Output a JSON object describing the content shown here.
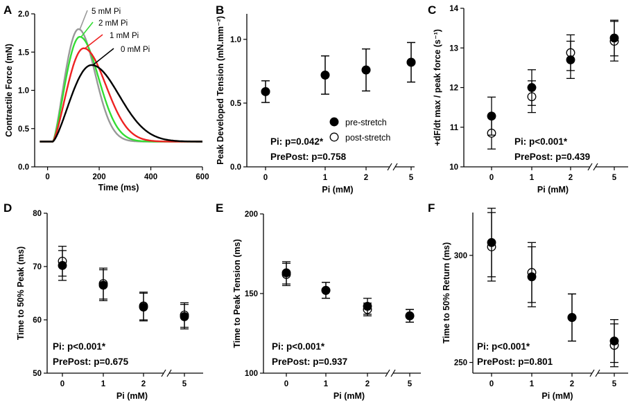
{
  "figure": {
    "width": 913,
    "height": 585
  },
  "chart_data": [
    {
      "id": "A",
      "panel_letter": "A",
      "type": "line",
      "xlabel": "Time (ms)",
      "ylabel": "Contractile Force (mN)",
      "xlim": [
        -50,
        600
      ],
      "ylim": [
        0.0,
        2.0
      ],
      "x_ticks": [
        0,
        200,
        400,
        600
      ],
      "x_tick_labels": [
        "0",
        "200",
        "400",
        "600"
      ],
      "y_ticks": [
        0.0,
        0.5,
        1.0,
        1.5,
        2.0
      ],
      "y_tick_labels": [
        "0.0",
        "0.5",
        "1.0",
        "1.5",
        "2.0"
      ],
      "series": [
        {
          "name": "5 mM Pi",
          "label": "5 mM Pi",
          "color": "#999999",
          "baseline": 0.33,
          "peak": 1.8,
          "t_peak": 120,
          "rise": 100,
          "decay": 60
        },
        {
          "name": "2 mM Pi",
          "label": "2 mM Pi",
          "color": "#33dd33",
          "baseline": 0.33,
          "peak": 1.7,
          "t_peak": 125,
          "rise": 105,
          "decay": 68
        },
        {
          "name": "1 mM Pi",
          "label": "1 mM Pi",
          "color": "#ee2222",
          "baseline": 0.33,
          "peak": 1.55,
          "t_peak": 140,
          "rise": 120,
          "decay": 80
        },
        {
          "name": "0 mM Pi",
          "label": "0 mM Pi",
          "color": "#000000",
          "baseline": 0.33,
          "peak": 1.33,
          "t_peak": 170,
          "rise": 150,
          "decay": 100
        }
      ]
    },
    {
      "id": "B",
      "panel_letter": "B",
      "type": "scatter",
      "xlabel": "Pi (mM)",
      "ylabel": "Peak Developed Tension (mN.mm⁻²)",
      "categories": [
        "0",
        "1",
        "2",
        "5"
      ],
      "ylim": [
        0.0,
        1.2
      ],
      "y_ticks": [
        0.0,
        0.5,
        1.0
      ],
      "y_tick_labels": [
        "0.0",
        "0.5",
        "1.0"
      ],
      "axis_break": true,
      "series": [
        {
          "name": "pre-stretch",
          "filled": true,
          "values": [
            0.59,
            0.72,
            0.76,
            0.82
          ],
          "err": [
            0.085,
            0.15,
            0.165,
            0.155
          ]
        },
        {
          "name": "post-stretch",
          "filled": false,
          "values": [
            0.59,
            0.72,
            0.76,
            0.82
          ],
          "err": [
            0.085,
            0.15,
            0.165,
            0.155
          ]
        }
      ],
      "stats": [
        "Pi: p=0.042*",
        "PrePost: p=0.758"
      ],
      "legend": {
        "pre": "pre-stretch",
        "post": "post-stretch"
      }
    },
    {
      "id": "C",
      "panel_letter": "C",
      "type": "scatter",
      "xlabel": "Pi (mM)",
      "ylabel": "+dF/dt max / peak force (s⁻¹)",
      "categories": [
        "0",
        "1",
        "2",
        "5"
      ],
      "ylim": [
        10,
        14
      ],
      "y_ticks": [
        10,
        11,
        12,
        13,
        14
      ],
      "y_tick_labels": [
        "10",
        "11",
        "12",
        "13",
        "14"
      ],
      "axis_break": true,
      "series": [
        {
          "name": "pre-stretch",
          "filled": true,
          "values": [
            11.28,
            12.0,
            12.7,
            13.25
          ],
          "err": [
            0.48,
            0.45,
            0.47,
            0.45
          ]
        },
        {
          "name": "post-stretch",
          "filled": false,
          "values": [
            10.85,
            11.77,
            12.88,
            13.17
          ],
          "err": [
            0.4,
            0.4,
            0.45,
            0.5
          ]
        }
      ],
      "stats": [
        "Pi: p<0.001*",
        "PrePost: p=0.439"
      ]
    },
    {
      "id": "D",
      "panel_letter": "D",
      "type": "scatter",
      "xlabel": "Pi (mM)",
      "ylabel": "Time to 50% Peak (ms)",
      "categories": [
        "0",
        "1",
        "2",
        "5"
      ],
      "ylim": [
        50,
        80
      ],
      "y_ticks": [
        50,
        60,
        70,
        80
      ],
      "y_tick_labels": [
        "50",
        "60",
        "70",
        "80"
      ],
      "axis_break": true,
      "series": [
        {
          "name": "pre-stretch",
          "filled": true,
          "values": [
            70.2,
            66.5,
            62.4,
            60.6
          ],
          "err": [
            2.8,
            2.9,
            2.6,
            2.3
          ]
        },
        {
          "name": "post-stretch",
          "filled": false,
          "values": [
            71.0,
            66.8,
            62.6,
            60.9
          ],
          "err": [
            2.8,
            2.9,
            2.6,
            2.3
          ]
        }
      ],
      "stats": [
        "Pi: p<0.001*",
        "PrePost: p=0.675"
      ]
    },
    {
      "id": "E",
      "panel_letter": "E",
      "type": "scatter",
      "xlabel": "Pi (mM)",
      "ylabel": "Time to Peak Tension (ms)",
      "categories": [
        "0",
        "1",
        "2",
        "5"
      ],
      "ylim": [
        100,
        200
      ],
      "y_ticks": [
        100,
        150,
        200
      ],
      "y_tick_labels": [
        "100",
        "150",
        "200"
      ],
      "axis_break": true,
      "series": [
        {
          "name": "pre-stretch",
          "filled": true,
          "values": [
            163,
            152,
            142,
            136
          ],
          "err": [
            7,
            5,
            5,
            4
          ]
        },
        {
          "name": "post-stretch",
          "filled": false,
          "values": [
            162,
            152,
            140,
            136
          ],
          "err": [
            7,
            5,
            4,
            4
          ]
        }
      ],
      "stats": [
        "Pi: p<0.001*",
        "PrePost: p=0.937"
      ]
    },
    {
      "id": "F",
      "panel_letter": "F",
      "type": "scatter",
      "xlabel": "Pi (mM)",
      "ylabel": "Time to 50% Return (ms)",
      "categories": [
        "0",
        "1",
        "2",
        "5"
      ],
      "ylim": [
        245,
        320
      ],
      "y_ticks": [
        250,
        300
      ],
      "y_tick_labels": [
        "250",
        "300"
      ],
      "axis_break": true,
      "series": [
        {
          "name": "pre-stretch",
          "filled": true,
          "values": [
            306,
            290,
            271,
            260
          ],
          "err": [
            16,
            14,
            11,
            10
          ]
        },
        {
          "name": "post-stretch",
          "filled": false,
          "values": [
            304,
            292,
            271,
            258
          ],
          "err": [
            16,
            14,
            11,
            10
          ]
        }
      ],
      "stats": [
        "Pi: p<0.001*",
        "PrePost: p=0.801"
      ]
    }
  ]
}
